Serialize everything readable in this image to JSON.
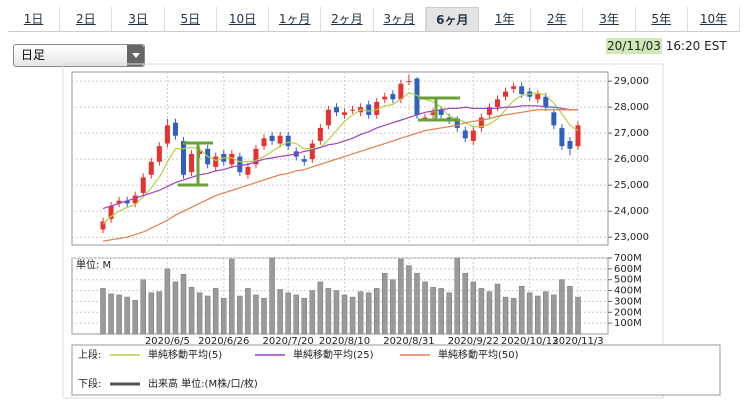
{
  "tabs": [
    "1日",
    "2日",
    "3日",
    "5日",
    "10日",
    "1ヶ月",
    "2ヶ月",
    "3ヶ月",
    "6ヶ月",
    "1年",
    "2年",
    "3年",
    "5年",
    "10年"
  ],
  "active_tab": 8,
  "dropdown": "日足",
  "date": "20/11/03",
  "time": "16:20 EST",
  "chart_data": [
    {
      "type": "candlestick",
      "categories": [
        null,
        null,
        null,
        null,
        null,
        null,
        null,
        null,
        "2020/6/5",
        null,
        null,
        null,
        null,
        null,
        null,
        "2020/6/26",
        null,
        null,
        null,
        null,
        null,
        null,
        null,
        "2020/7/20",
        null,
        null,
        null,
        null,
        null,
        null,
        "2020/8/10",
        null,
        null,
        null,
        null,
        null,
        null,
        null,
        "2020/8/31",
        null,
        null,
        null,
        null,
        null,
        null,
        null,
        "2020/9/22",
        null,
        null,
        null,
        null,
        null,
        null,
        "2020/10/13",
        null,
        null,
        null,
        null,
        null,
        "2020/11/3"
      ],
      "open": [
        23300,
        23700,
        24300,
        24400,
        24300,
        24700,
        25400,
        25900,
        26600,
        27400,
        26700,
        25500,
        26200,
        26400,
        25700,
        26200,
        25800,
        26100,
        25400,
        25800,
        26500,
        26900,
        26600,
        26900,
        26300,
        26000,
        26000,
        26700,
        27300,
        28000,
        27700,
        27900,
        27800,
        28100,
        27700,
        28300,
        28500,
        28300,
        29000,
        29100,
        27600,
        27700,
        27900,
        27600,
        27500,
        27100,
        26700,
        27200,
        27700,
        28000,
        28400,
        28700,
        28800,
        28600,
        28300,
        28400,
        27800,
        27200,
        26700,
        26500
      ],
      "high": [
        23750,
        24350,
        24550,
        24550,
        24750,
        25450,
        26050,
        26650,
        27550,
        27550,
        26850,
        26350,
        26450,
        26550,
        26250,
        26350,
        26350,
        26250,
        25850,
        26550,
        26950,
        27050,
        27050,
        27050,
        26450,
        26150,
        26750,
        27350,
        28050,
        28150,
        27950,
        28050,
        28150,
        28250,
        28350,
        28550,
        28650,
        29050,
        29250,
        29150,
        27750,
        27950,
        28050,
        27750,
        27650,
        27250,
        27250,
        27750,
        28150,
        28450,
        28750,
        28950,
        28950,
        28750,
        28650,
        28550,
        27950,
        27350,
        26850,
        27450
      ],
      "low": [
        23150,
        23550,
        24150,
        24150,
        24150,
        24550,
        25250,
        25750,
        26450,
        26750,
        25250,
        25350,
        26050,
        25650,
        25550,
        25750,
        25650,
        25350,
        25250,
        25650,
        26350,
        26550,
        26450,
        26350,
        25950,
        25750,
        25850,
        26550,
        27150,
        27650,
        27550,
        27750,
        27650,
        27550,
        27550,
        28150,
        28150,
        28150,
        28850,
        27550,
        27450,
        27550,
        27550,
        27350,
        27050,
        26650,
        26550,
        27050,
        27550,
        27850,
        28250,
        28550,
        28350,
        28250,
        28150,
        27850,
        27150,
        26350,
        26150,
        26350
      ],
      "close": [
        23600,
        24200,
        24400,
        24300,
        24600,
        25300,
        25900,
        26500,
        27300,
        26900,
        25400,
        26200,
        26300,
        25800,
        26100,
        25900,
        26200,
        25500,
        25700,
        26400,
        26800,
        26700,
        26900,
        26500,
        26100,
        25900,
        26600,
        27200,
        27900,
        27800,
        27800,
        27900,
        28000,
        27700,
        28200,
        28400,
        28300,
        28900,
        29000,
        27700,
        27600,
        27800,
        27700,
        27500,
        27200,
        26800,
        27100,
        27600,
        28000,
        28300,
        28600,
        28800,
        28500,
        28400,
        28500,
        28000,
        27300,
        26500,
        26400,
        27300
      ],
      "up_color": "#e8322f",
      "down_color": "#2f5fbf",
      "legend_label": "上段:",
      "series": [
        {
          "name": "単純移動平均(5)",
          "color": "#b5cf4a",
          "values": [
            23500,
            23800,
            24000,
            24150,
            24250,
            24550,
            24900,
            25300,
            25900,
            26400,
            26400,
            26450,
            26400,
            26100,
            25950,
            26050,
            26050,
            25900,
            25900,
            25950,
            26100,
            26300,
            26500,
            26650,
            26600,
            26400,
            26400,
            26450,
            26750,
            27100,
            27450,
            27700,
            27900,
            27850,
            27900,
            28050,
            28100,
            28300,
            28550,
            28450,
            28300,
            28200,
            28000,
            27650,
            27550,
            27400,
            27250,
            27250,
            27350,
            27550,
            27900,
            28250,
            28450,
            28500,
            28550,
            28450,
            28150,
            27750,
            27300,
            27100
          ]
        },
        {
          "name": "単純移動平均(25)",
          "color": "#a040c0",
          "values": [
            24100,
            24200,
            24300,
            24400,
            24500,
            24600,
            24700,
            24800,
            24950,
            25100,
            25200,
            25300,
            25400,
            25450,
            25550,
            25600,
            25700,
            25750,
            25800,
            25900,
            26000,
            26050,
            26100,
            26150,
            26200,
            26300,
            26350,
            26450,
            26550,
            26600,
            26700,
            26800,
            26950,
            27050,
            27200,
            27300,
            27400,
            27500,
            27600,
            27700,
            27800,
            27850,
            27900,
            27950,
            27950,
            28000,
            27950,
            27950,
            27950,
            27950,
            28000,
            28000,
            28050,
            28050,
            28050,
            28000,
            28000,
            27950,
            27900,
            27900
          ]
        },
        {
          "name": "単純移動平均(50)",
          "color": "#e08050",
          "values": [
            22850,
            22900,
            22950,
            23000,
            23100,
            23200,
            23350,
            23500,
            23650,
            23850,
            24000,
            24150,
            24300,
            24450,
            24600,
            24700,
            24800,
            24900,
            25000,
            25100,
            25200,
            25300,
            25400,
            25450,
            25550,
            25600,
            25700,
            25800,
            25900,
            26000,
            26100,
            26200,
            26300,
            26400,
            26500,
            26600,
            26700,
            26800,
            26900,
            27000,
            27100,
            27150,
            27200,
            27250,
            27300,
            27400,
            27450,
            27500,
            27550,
            27650,
            27700,
            27750,
            27800,
            27850,
            27900,
            27900,
            27900,
            27900,
            27900,
            27900
          ]
        }
      ],
      "ylim": [
        22700,
        29350
      ],
      "yticks": [
        {
          "value": 23000,
          "label": "23,000"
        },
        {
          "value": 24000,
          "label": "24,000"
        },
        {
          "value": 25000,
          "label": "25,000"
        },
        {
          "value": 26000,
          "label": "26,000"
        },
        {
          "value": 27000,
          "label": "27,000"
        },
        {
          "value": 28000,
          "label": "28,000"
        },
        {
          "value": 29000,
          "label": "29,000"
        }
      ],
      "grid": true
    },
    {
      "type": "bar",
      "unit_label": "単位: M",
      "legend_label": "下段:",
      "series": [
        {
          "name": "出来高 単位:(M株/口/枚)",
          "color": "#9a9a9a",
          "values": [
            420,
            370,
            360,
            340,
            310,
            500,
            380,
            390,
            600,
            480,
            550,
            430,
            380,
            350,
            420,
            330,
            690,
            350,
            420,
            360,
            330,
            700,
            410,
            380,
            360,
            330,
            400,
            480,
            420,
            400,
            360,
            340,
            390,
            380,
            420,
            560,
            500,
            690,
            630,
            560,
            480,
            430,
            420,
            380,
            700,
            560,
            480,
            420,
            390,
            460,
            340,
            330,
            440,
            380,
            350,
            390,
            360,
            500,
            440,
            340
          ]
        }
      ],
      "ylim": [
        0,
        700
      ],
      "yticks": [
        {
          "value": 100,
          "label": "100M"
        },
        {
          "value": 200,
          "label": "200M"
        },
        {
          "value": 300,
          "label": "300M"
        },
        {
          "value": 400,
          "label": "400M"
        },
        {
          "value": 500,
          "label": "500M"
        },
        {
          "value": 600,
          "label": "600M"
        },
        {
          "value": 700,
          "label": "700M"
        }
      ],
      "grid": true
    }
  ]
}
